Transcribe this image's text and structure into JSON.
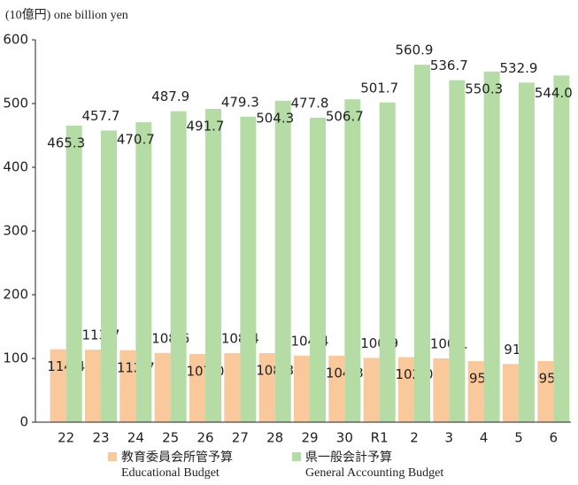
{
  "chart_data": {
    "type": "bar",
    "y_label": "(10億円) one billion yen",
    "categories": [
      "22",
      "23",
      "24",
      "25",
      "26",
      "27",
      "28",
      "29",
      "30",
      "R1",
      "2",
      "3",
      "4",
      "5",
      "6"
    ],
    "series": [
      {
        "name": "教育委員会所管予算",
        "name_en": "Educational Budget",
        "color": "#f9c89b",
        "values": [
          114.4,
          113.7,
          112.7,
          108.6,
          107.0,
          108.4,
          108.3,
          104.4,
          104.3,
          100.9,
          102.0,
          100.1,
          95.7,
          91.2,
          95.8
        ],
        "value_labels": [
          "114.4",
          "113.7",
          "112.7",
          "108.6",
          "107.0",
          "108.4",
          "108.3",
          "104.4",
          "104.3",
          "100.9",
          "102.0",
          "100.1",
          "95.7",
          "91.2",
          "95.8"
        ]
      },
      {
        "name": "県一般会計予算",
        "name_en": "General Accounting Budget",
        "color": "#b5dca5",
        "values": [
          465.3,
          457.7,
          470.7,
          487.9,
          491.7,
          479.3,
          504.3,
          477.8,
          506.7,
          501.7,
          560.9,
          536.7,
          550.3,
          532.9,
          544.0
        ],
        "value_labels": [
          "465.3",
          "457.7",
          "470.7",
          "487.9",
          "491.7",
          "479.3",
          "504.3",
          "477.8",
          "506.7",
          "501.7",
          "560.9",
          "536.7",
          "550.3",
          "532.9",
          "544.0"
        ]
      }
    ],
    "ylim": [
      0,
      600
    ],
    "yticks": [
      0,
      100,
      200,
      300,
      400,
      500,
      600
    ]
  }
}
